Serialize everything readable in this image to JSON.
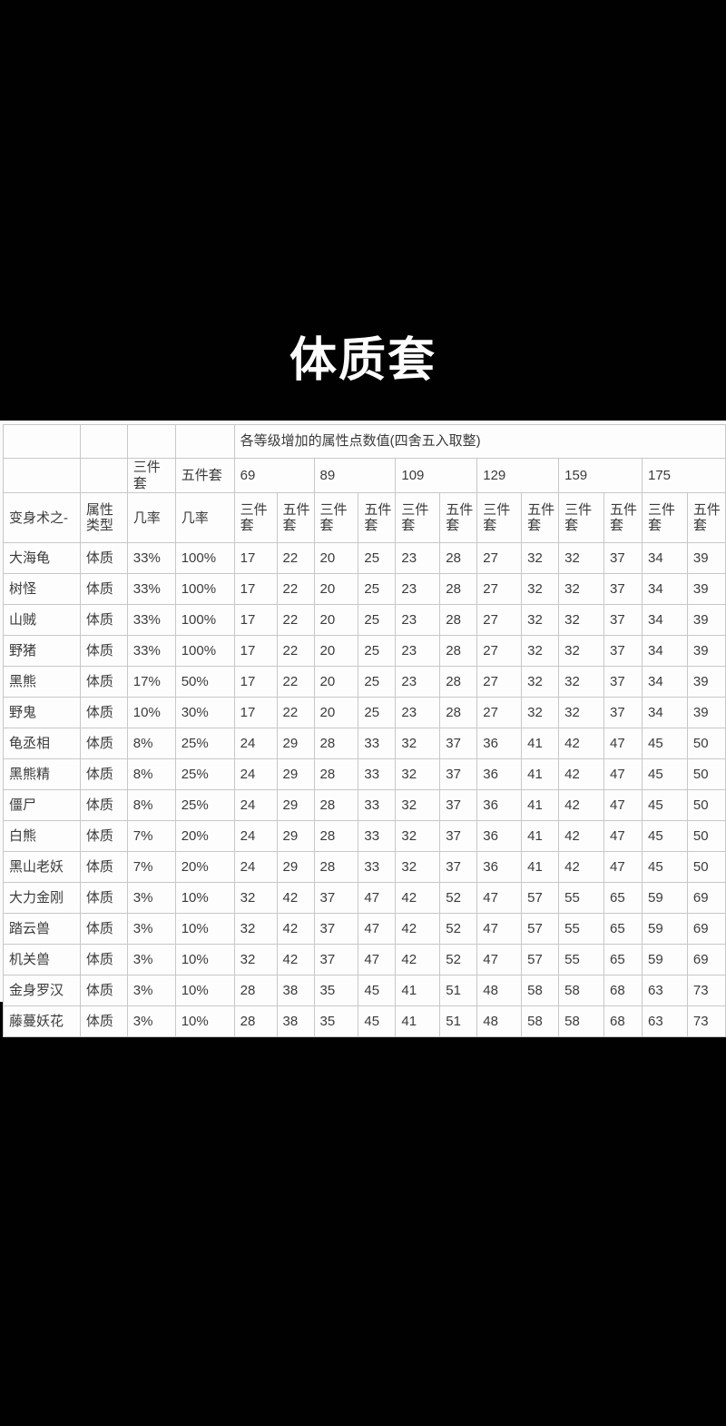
{
  "title": "体质套",
  "header": {
    "span_header": "各等级增加的属性点数值(四舍五入取整)",
    "name_label": "变身术之-",
    "attr_label": "属性类型",
    "rate_label": "几率",
    "set3_label": "三件套",
    "set5_label": "五件套",
    "levels": [
      "69",
      "89",
      "109",
      "129",
      "159",
      "175"
    ]
  },
  "chart_data": {
    "type": "table",
    "title": "体质套",
    "span_header": "各等级增加的属性点数值(四舍五入取整)",
    "columns": [
      "变身术之-",
      "属性类型",
      "几率 三件套",
      "几率 五件套",
      "69 三件套",
      "69 五件套",
      "89 三件套",
      "89 五件套",
      "109 三件套",
      "109 五件套",
      "129 三件套",
      "129 五件套",
      "159 三件套",
      "159 五件套",
      "175 三件套",
      "175 五件套"
    ],
    "rows": [
      {
        "name": "大海龟",
        "attr": "体质",
        "rate3": "33%",
        "rate5": "100%",
        "values": [
          "17",
          "22",
          "20",
          "25",
          "23",
          "28",
          "27",
          "32",
          "32",
          "37",
          "34",
          "39"
        ]
      },
      {
        "name": "树怪",
        "attr": "体质",
        "rate3": "33%",
        "rate5": "100%",
        "values": [
          "17",
          "22",
          "20",
          "25",
          "23",
          "28",
          "27",
          "32",
          "32",
          "37",
          "34",
          "39"
        ]
      },
      {
        "name": "山贼",
        "attr": "体质",
        "rate3": "33%",
        "rate5": "100%",
        "values": [
          "17",
          "22",
          "20",
          "25",
          "23",
          "28",
          "27",
          "32",
          "32",
          "37",
          "34",
          "39"
        ]
      },
      {
        "name": "野猪",
        "attr": "体质",
        "rate3": "33%",
        "rate5": "100%",
        "values": [
          "17",
          "22",
          "20",
          "25",
          "23",
          "28",
          "27",
          "32",
          "32",
          "37",
          "34",
          "39"
        ]
      },
      {
        "name": "黑熊",
        "attr": "体质",
        "rate3": "17%",
        "rate5": "50%",
        "values": [
          "17",
          "22",
          "20",
          "25",
          "23",
          "28",
          "27",
          "32",
          "32",
          "37",
          "34",
          "39"
        ]
      },
      {
        "name": "野鬼",
        "attr": "体质",
        "rate3": "10%",
        "rate5": "30%",
        "values": [
          "17",
          "22",
          "20",
          "25",
          "23",
          "28",
          "27",
          "32",
          "32",
          "37",
          "34",
          "39"
        ]
      },
      {
        "name": "龟丞相",
        "attr": "体质",
        "rate3": "8%",
        "rate5": "25%",
        "values": [
          "24",
          "29",
          "28",
          "33",
          "32",
          "37",
          "36",
          "41",
          "42",
          "47",
          "45",
          "50"
        ]
      },
      {
        "name": "黑熊精",
        "attr": "体质",
        "rate3": "8%",
        "rate5": "25%",
        "values": [
          "24",
          "29",
          "28",
          "33",
          "32",
          "37",
          "36",
          "41",
          "42",
          "47",
          "45",
          "50"
        ]
      },
      {
        "name": "僵尸",
        "attr": "体质",
        "rate3": "8%",
        "rate5": "25%",
        "values": [
          "24",
          "29",
          "28",
          "33",
          "32",
          "37",
          "36",
          "41",
          "42",
          "47",
          "45",
          "50"
        ]
      },
      {
        "name": "白熊",
        "attr": "体质",
        "rate3": "7%",
        "rate5": "20%",
        "values": [
          "24",
          "29",
          "28",
          "33",
          "32",
          "37",
          "36",
          "41",
          "42",
          "47",
          "45",
          "50"
        ]
      },
      {
        "name": "黑山老妖",
        "attr": "体质",
        "rate3": "7%",
        "rate5": "20%",
        "values": [
          "24",
          "29",
          "28",
          "33",
          "32",
          "37",
          "36",
          "41",
          "42",
          "47",
          "45",
          "50"
        ]
      },
      {
        "name": "大力金刚",
        "attr": "体质",
        "rate3": "3%",
        "rate5": "10%",
        "values": [
          "32",
          "42",
          "37",
          "47",
          "42",
          "52",
          "47",
          "57",
          "55",
          "65",
          "59",
          "69"
        ]
      },
      {
        "name": "踏云兽",
        "attr": "体质",
        "rate3": "3%",
        "rate5": "10%",
        "values": [
          "32",
          "42",
          "37",
          "47",
          "42",
          "52",
          "47",
          "57",
          "55",
          "65",
          "59",
          "69"
        ]
      },
      {
        "name": "机关兽",
        "attr": "体质",
        "rate3": "3%",
        "rate5": "10%",
        "values": [
          "32",
          "42",
          "37",
          "47",
          "42",
          "52",
          "47",
          "57",
          "55",
          "65",
          "59",
          "69"
        ]
      },
      {
        "name": "金身罗汉",
        "attr": "体质",
        "rate3": "3%",
        "rate5": "10%",
        "values": [
          "28",
          "38",
          "35",
          "45",
          "41",
          "51",
          "48",
          "58",
          "58",
          "68",
          "63",
          "73"
        ]
      },
      {
        "name": "藤蔓妖花",
        "attr": "体质",
        "rate3": "3%",
        "rate5": "10%",
        "values": [
          "28",
          "38",
          "35",
          "45",
          "41",
          "51",
          "48",
          "58",
          "58",
          "68",
          "63",
          "73"
        ]
      }
    ]
  },
  "colors": {
    "background": "#000000",
    "table_background": "#fafafa",
    "cell_background": "#fdfdfd",
    "border": "#c8c8c8",
    "text": "#3b3b3b",
    "title_text": "#fdfdfd"
  }
}
